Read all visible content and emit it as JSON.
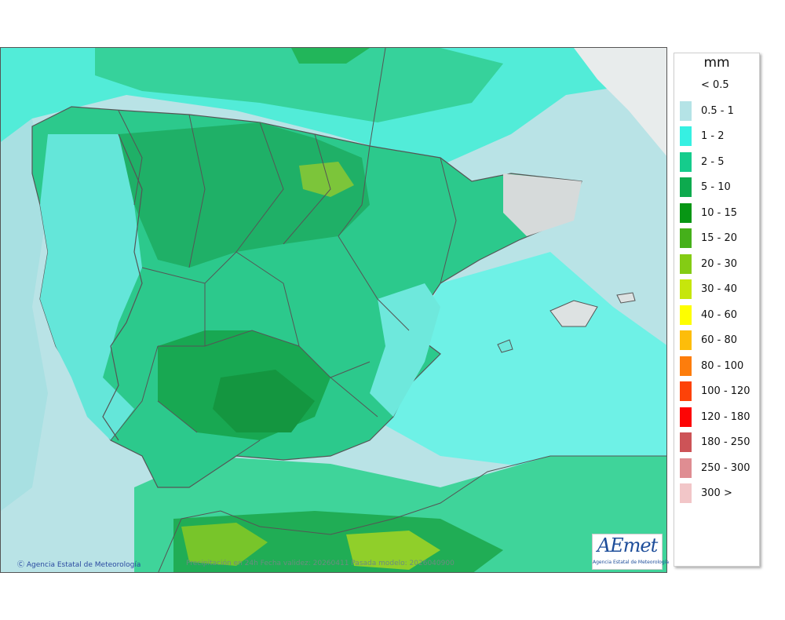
{
  "legend": {
    "title": "mm",
    "items": [
      {
        "label": "< 0.5",
        "color": "#ffffff"
      },
      {
        "label": "0.5 - 1",
        "color": "#b4e3e6"
      },
      {
        "label": "1 - 2",
        "color": "#36f0e2"
      },
      {
        "label": "2 - 5",
        "color": "#15cc8c"
      },
      {
        "label": "5 - 10",
        "color": "#0daa4e"
      },
      {
        "label": "10 - 15",
        "color": "#079614"
      },
      {
        "label": "15 - 20",
        "color": "#45b01a"
      },
      {
        "label": "20 - 30",
        "color": "#84cc14"
      },
      {
        "label": "30 - 40",
        "color": "#c6e60c"
      },
      {
        "label": "40 - 60",
        "color": "#fefe00"
      },
      {
        "label": "60 - 80",
        "color": "#fdbd0a"
      },
      {
        "label": "80 - 100",
        "color": "#fd7d0c"
      },
      {
        "label": "100 - 120",
        "color": "#fd4208"
      },
      {
        "label": "120 - 180",
        "color": "#fd0505"
      },
      {
        "label": "180 - 250",
        "color": "#cd5357"
      },
      {
        "label": "250 - 300",
        "color": "#df8d92"
      },
      {
        "label": "300 >",
        "color": "#f2c6c8"
      }
    ]
  },
  "footer": {
    "copyright": "Agencia Estatal de Meteorología",
    "caption": "Precipitación en 24h  Fecha validez: 20260411  Pasada modelo: 2026040900"
  },
  "logo": {
    "text": "AEmet",
    "subtitle": "Agencia Estatal de Meteorología"
  },
  "icons": {
    "copyright": "copyright-icon",
    "logo": "aemet-logo"
  }
}
